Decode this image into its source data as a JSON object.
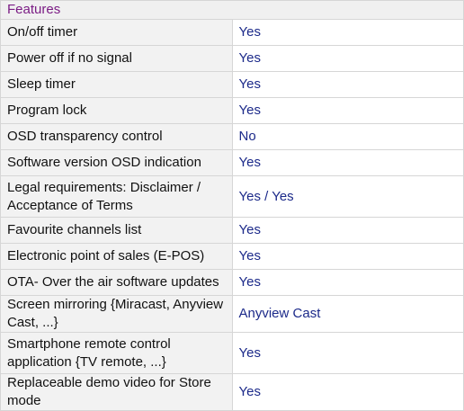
{
  "section": {
    "title": "Features"
  },
  "features": [
    {
      "label": "On/off timer",
      "value": "Yes"
    },
    {
      "label": "Power off if no signal",
      "value": "Yes"
    },
    {
      "label": "Sleep timer",
      "value": "Yes"
    },
    {
      "label": "Program lock",
      "value": "Yes"
    },
    {
      "label": "OSD transparency control",
      "value": "No"
    },
    {
      "label": "Software version OSD indication",
      "value": "Yes"
    },
    {
      "label": "Legal requirements: Disclaimer / Acceptance of Terms",
      "value": "Yes / Yes"
    },
    {
      "label": "Favourite channels list",
      "value": "Yes"
    },
    {
      "label": "Electronic point of sales (E-POS)",
      "value": "Yes"
    },
    {
      "label": "OTA- Over the air software updates",
      "value": "Yes"
    },
    {
      "label": "Screen mirroring {Miracast, Anyview Cast, ...}",
      "value": "Anyview Cast"
    },
    {
      "label": "Smartphone remote control application {TV remote, ...}",
      "value": "Yes"
    },
    {
      "label": "Replaceable demo video for Store mode",
      "value": "Yes"
    }
  ],
  "colors": {
    "header_text": "#7b1d85",
    "value_text": "#1c2a8a",
    "label_text": "#111111",
    "label_background": "#f2f2f2",
    "border": "#d6d6d6"
  }
}
